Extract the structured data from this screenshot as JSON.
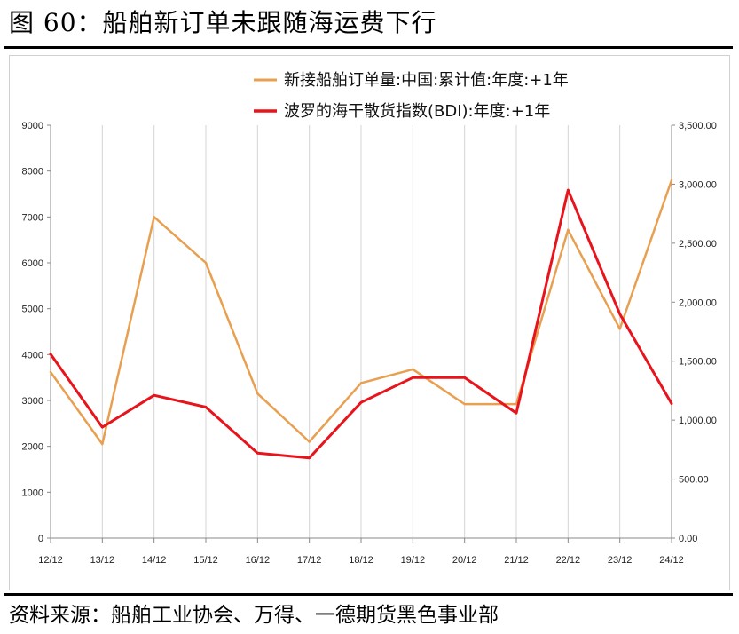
{
  "figure": {
    "title": "图 60：船舶新订单未跟随海运费下行",
    "source": "资料来源：船舶工业协会、万得、一德期货黑色事业部"
  },
  "chart_data": {
    "type": "line",
    "categories": [
      "12/12",
      "13/12",
      "14/12",
      "15/12",
      "16/12",
      "17/12",
      "18/12",
      "19/12",
      "20/12",
      "21/12",
      "22/12",
      "23/12",
      "24/12"
    ],
    "series": [
      {
        "name": "新接船舶订单量:中国:累计值:年度:+1年",
        "axis": "left",
        "color": "#E8A050",
        "values": [
          3620,
          2050,
          7000,
          6000,
          3150,
          2100,
          3380,
          3680,
          2920,
          2920,
          6720,
          4560,
          7800
        ]
      },
      {
        "name": "波罗的海干散货指数(BDI):年度:+1年",
        "axis": "right",
        "color": "#E8141C",
        "values": [
          1560,
          940,
          1210,
          1110,
          720,
          680,
          1150,
          1360,
          1360,
          1060,
          2950,
          1900,
          1140
        ]
      }
    ],
    "y_left": {
      "min": 0,
      "max": 9000,
      "ticks": [
        "0",
        "1000",
        "2000",
        "3000",
        "4000",
        "5000",
        "6000",
        "7000",
        "8000",
        "9000"
      ]
    },
    "y_right": {
      "min": 0,
      "max": 3500,
      "ticks": [
        "0.00",
        "500.00",
        "1,000.00",
        "1,500.00",
        "2,000.00",
        "2,500.00",
        "3,000.00",
        "3,500.00"
      ]
    },
    "grid": "vertical",
    "legend": "top-center"
  }
}
